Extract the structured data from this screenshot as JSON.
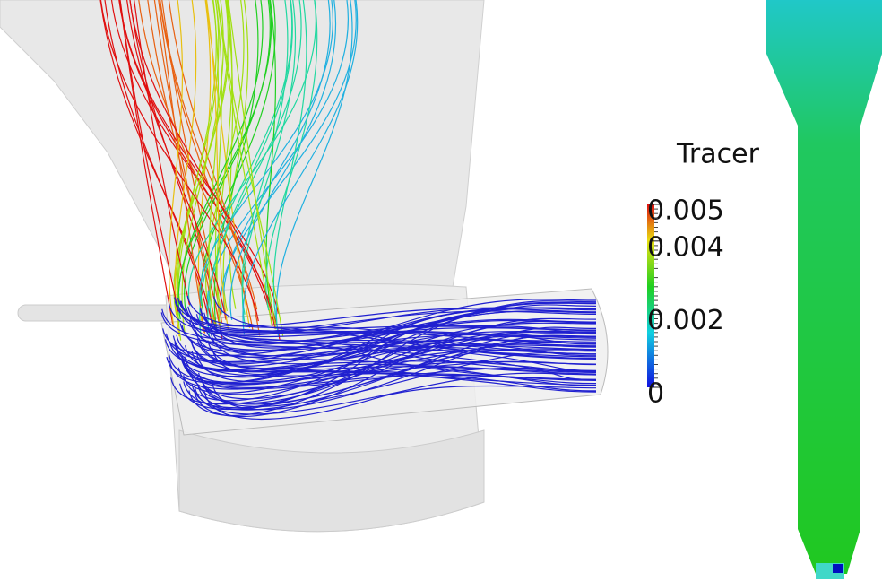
{
  "legend": {
    "title": "Tracer",
    "range": [
      0,
      0.005
    ],
    "ticks": [
      0.005,
      0.004,
      0.002,
      0
    ]
  }
}
